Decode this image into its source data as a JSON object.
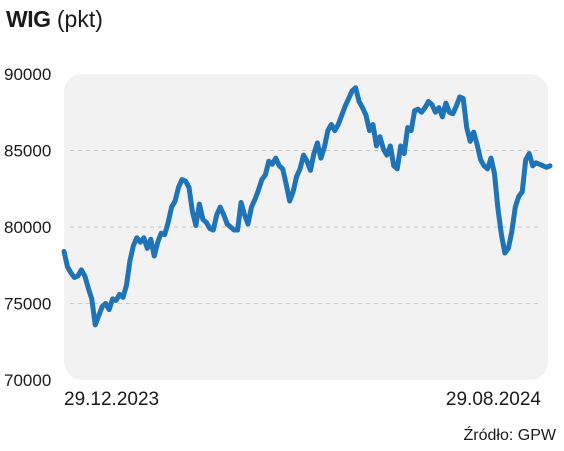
{
  "header": {
    "title": "WIG",
    "unit": "(pkt)"
  },
  "source": "Źródło: GPW",
  "colors": {
    "line": "#1f73b7",
    "plot_bg": "#f2f2f2",
    "grid": "#c8c8c8",
    "text": "#1a1a1a"
  },
  "chart_data": {
    "type": "line",
    "title": "WIG",
    "ylabel": "(pkt)",
    "xlabel": "",
    "ylim": [
      70000,
      90000
    ],
    "yticks": [
      70000,
      75000,
      80000,
      85000,
      90000
    ],
    "xtick_labels": [
      "29.12.2023",
      "29.08.2024"
    ],
    "grid": "horizontal dashed",
    "x_start": "29.12.2023",
    "x_end": "29.08.2024",
    "series": [
      {
        "values": [
          78400,
          77400,
          77000,
          76700,
          76800,
          77200,
          76800,
          76000,
          75300,
          73600,
          74200,
          74800,
          75000,
          74600,
          75300,
          75200,
          75600,
          75400,
          76200,
          77800,
          78800,
          79300,
          79000,
          79300,
          78600,
          79200,
          78100,
          79000,
          79600,
          79500,
          80300,
          81300,
          81700,
          82600,
          83100,
          83000,
          82600,
          81000,
          80100,
          81500,
          80500,
          80300,
          79900,
          79800,
          80800,
          81300,
          80800,
          80200,
          80000,
          79800,
          79800,
          81600,
          80800,
          80200,
          81300,
          81800,
          82400,
          83100,
          83400,
          84300,
          84100,
          84500,
          84000,
          83800,
          82800,
          81700,
          82300,
          83300,
          83800,
          84700,
          84300,
          83700,
          84800,
          85500,
          84500,
          85200,
          86300,
          86700,
          86300,
          86700,
          87300,
          87900,
          88400,
          88900,
          89100,
          88200,
          87800,
          87300,
          86300,
          86700,
          85300,
          85900,
          85100,
          84700,
          85300,
          84000,
          83800,
          85300,
          84800,
          86500,
          86300,
          87600,
          87700,
          87500,
          87800,
          88200,
          88000,
          87500,
          87800,
          87200,
          88100,
          87500,
          87400,
          87900,
          88500,
          88400,
          86500,
          85600,
          86200,
          85400,
          84400,
          84000,
          83800,
          84500,
          83500,
          81200,
          79500,
          78300,
          78600,
          79700,
          81300,
          82000,
          82300,
          84400,
          84800,
          84000,
          84200,
          84100,
          84000,
          83900,
          84000
        ]
      }
    ]
  }
}
